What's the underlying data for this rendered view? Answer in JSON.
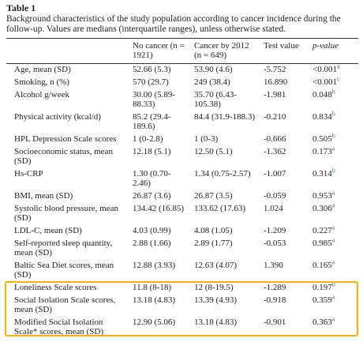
{
  "title": "Table 1",
  "caption": "Background characteristics of the study population according to cancer incidence during the follow-up. Values are medians (interquartile ranges), unless otherwise stated.",
  "table": {
    "header": [
      "",
      "No cancer (n = 1921)",
      "Cancer by 2012 (n = 649)",
      "Test value",
      "p-value"
    ],
    "rows": [
      [
        "Age, mean (SD)",
        "52.66 (5.3)",
        "53.90 (4.6)",
        "-5.752",
        "<0.001"
      ],
      [
        "Smoking, n (%)",
        "570 (29.7)",
        "249 (38.4)",
        "16.890",
        "<0.001"
      ],
      [
        "Alcohol g/week",
        "30.00 (5.89-88.33)",
        "35.70 (6.43-105.38)",
        "-1.981",
        "0.048"
      ],
      [
        "Physical activity (kcal/d)",
        "85.2 (29.4-189.6)",
        "84.4 (31.9-188.3)",
        "-0.210",
        "0.834"
      ],
      [
        "HPL Depression Scale scores",
        "1 (0-2.8)",
        "1 (0-3)",
        "-0.666",
        "0.505"
      ],
      [
        "Socioeconomic status, mean (SD)",
        "12.18 (5.1)",
        "12.50 (5.1)",
        "-1.362",
        "0.173"
      ],
      [
        "Hs-CRP",
        "1.30 (0.70-2.46)",
        "1.34 (0.75-2.57)",
        "-1.007",
        "0.314"
      ],
      [
        "BMI, mean (SD)",
        "26.87 (3.6)",
        "26.87 (3.5)",
        "-0.059",
        "0.953"
      ],
      [
        "Systolic blood pressure, mean (SD)",
        "134.42 (16.85)",
        "133.62 (17.63)",
        "1.024",
        "0.306"
      ],
      [
        "LDL-C, mean (SD)",
        "4.03 (0.99)",
        "4.08 (1.05)",
        "-1.209",
        "0.227"
      ],
      [
        "Self-reported sleep quantity, mean (SD)",
        "2.88 (1.66)",
        "2.89 (1.77)",
        "-0.053",
        "0.985"
      ],
      [
        "Baltic Sea Diet scores, mean (SD)",
        "12.88 (3.93)",
        "12.63 (4.07)",
        "1.390",
        "0.165"
      ],
      [
        "Loneliness Scale scores",
        "11.8 (8-18)",
        "12 (8-19.5)",
        "-1.289",
        "0.197"
      ],
      [
        "Social Isolation Scale scores, mean (SD)",
        "13.18 (4.83)",
        "13.39 (4.93)",
        "-0.918",
        "0.359"
      ],
      [
        "Modified Social Isolation Scale* scores, mean (SD)",
        "12.90 (5.06)",
        "13.18 (4.83)",
        "-0.901",
        "0.363"
      ]
    ],
    "superscripts": [
      "a",
      "c",
      "b",
      "b",
      "b",
      "a",
      "b",
      "a",
      "a",
      "a",
      "a",
      "a",
      "b",
      "a",
      "a"
    ]
  }
}
